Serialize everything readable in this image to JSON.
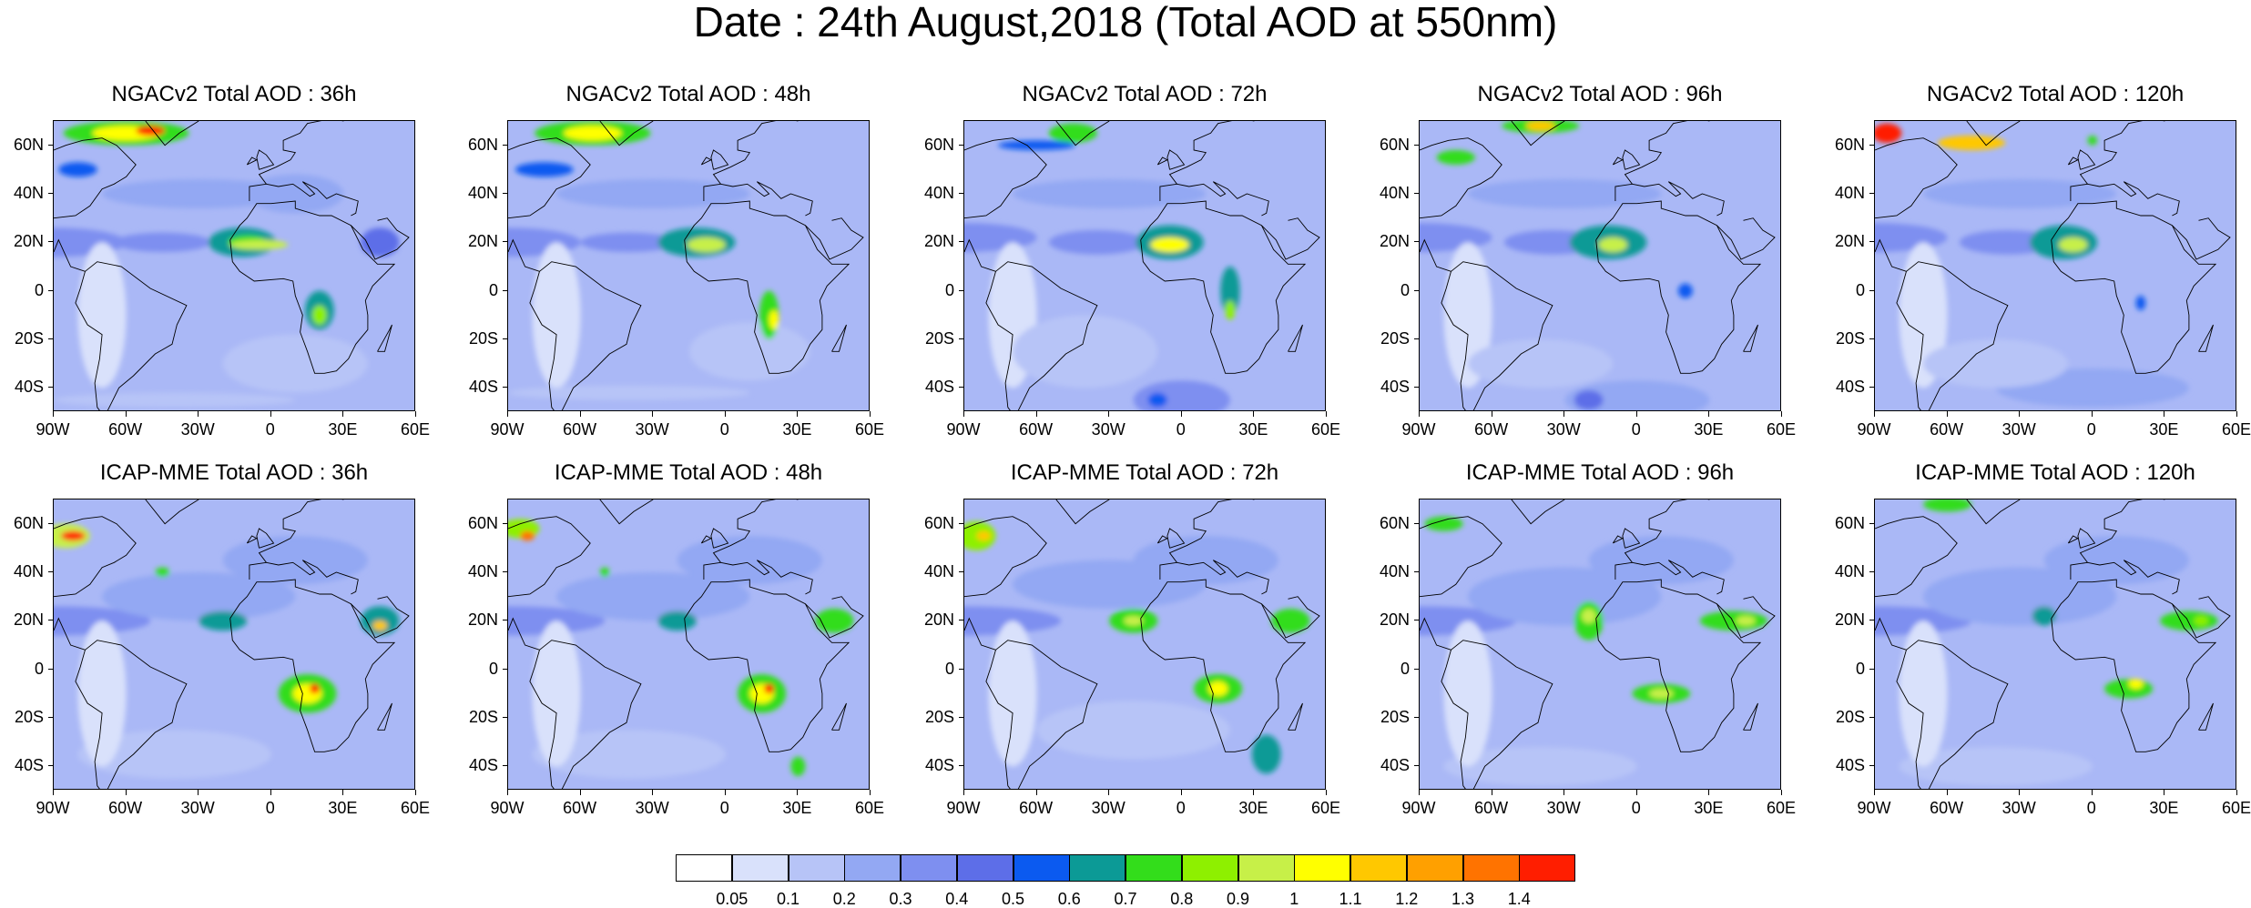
{
  "title": "Date : 24th August,2018 (Total AOD at 550nm)",
  "row_labels": [
    "NGACv2",
    "ICAP-MME"
  ],
  "panels": [
    {
      "title": "NGACv2 Total AOD : 36h",
      "model": "NGACv2",
      "lead": "36h"
    },
    {
      "title": "NGACv2 Total AOD : 48h",
      "model": "NGACv2",
      "lead": "48h"
    },
    {
      "title": "NGACv2 Total AOD : 72h",
      "model": "NGACv2",
      "lead": "72h"
    },
    {
      "title": "NGACv2 Total AOD : 96h",
      "model": "NGACv2",
      "lead": "96h"
    },
    {
      "title": "NGACv2 Total AOD : 120h",
      "model": "NGACv2",
      "lead": "120h"
    },
    {
      "title": "ICAP-MME Total AOD : 36h",
      "model": "ICAP-MME",
      "lead": "36h"
    },
    {
      "title": "ICAP-MME Total AOD : 48h",
      "model": "ICAP-MME",
      "lead": "48h"
    },
    {
      "title": "ICAP-MME Total AOD : 72h",
      "model": "ICAP-MME",
      "lead": "72h"
    },
    {
      "title": "ICAP-MME Total AOD : 96h",
      "model": "ICAP-MME",
      "lead": "96h"
    },
    {
      "title": "ICAP-MME Total AOD : 120h",
      "model": "ICAP-MME",
      "lead": "120h"
    }
  ],
  "lat_labels": [
    "60N",
    "40N",
    "20N",
    "0",
    "20S",
    "40S"
  ],
  "lon_labels": [
    "90W",
    "60W",
    "30W",
    "0",
    "30E",
    "60E"
  ],
  "map_extent": {
    "lon": [
      -90,
      60
    ],
    "lat": [
      -50,
      70
    ]
  },
  "colorbar": {
    "labels": [
      "0.05",
      "0.1",
      "0.2",
      "0.3",
      "0.4",
      "0.5",
      "0.6",
      "0.7",
      "0.8",
      "0.9",
      "1",
      "1.1",
      "1.2",
      "1.3",
      "1.4"
    ],
    "colors": [
      "#ffffff",
      "#d9e1fb",
      "#b7c4f7",
      "#93a8f3",
      "#7e8ff0",
      "#5d6ee8",
      "#0b5af0",
      "#0c9a96",
      "#33dd1b",
      "#8ef000",
      "#c7f048",
      "#ffff00",
      "#ffc800",
      "#ffa000",
      "#ff7300",
      "#ff1e00"
    ]
  },
  "colors": {
    "ocean_base": "#aab8f6",
    "coast": "#000000"
  }
}
